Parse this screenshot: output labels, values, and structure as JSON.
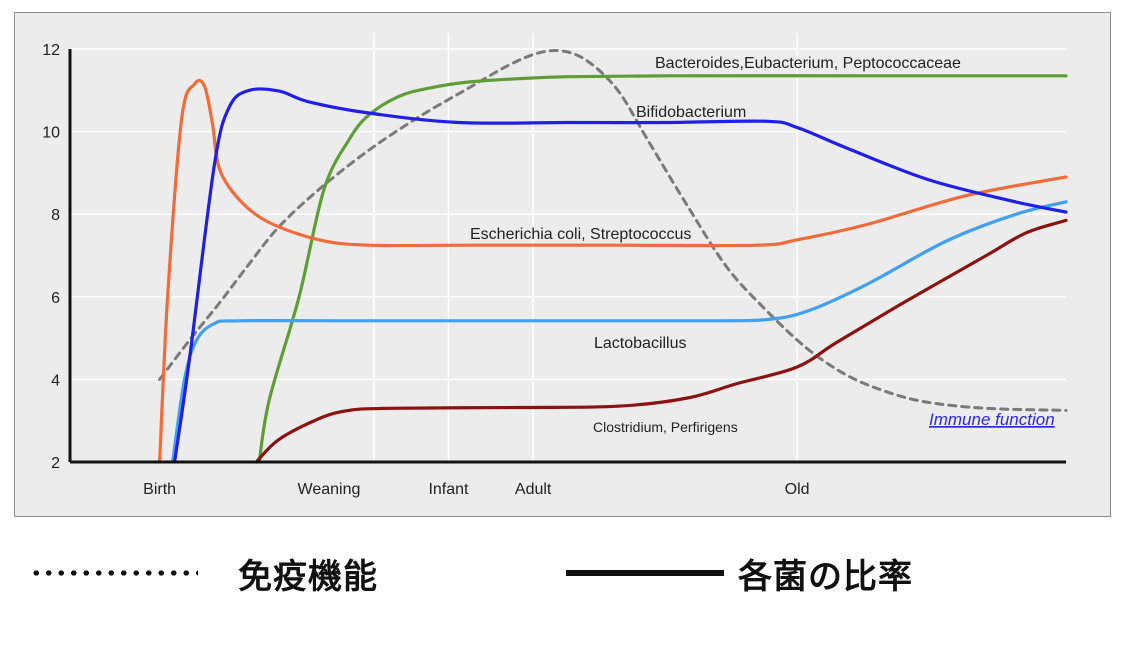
{
  "chart_data": {
    "type": "line",
    "title": "",
    "xlabel": "",
    "ylabel": "",
    "ylim": [
      2,
      12
    ],
    "yticks": [
      "2",
      "4",
      "6",
      "8",
      "10",
      "12"
    ],
    "x_range": [
      0,
      100
    ],
    "categories": [
      {
        "label": "Birth",
        "x": 9
      },
      {
        "label": "Weaning",
        "x": 26
      },
      {
        "label": "Infant",
        "x": 38
      },
      {
        "label": "Adult",
        "x": 46.5
      },
      {
        "label": "Old",
        "x": 73
      }
    ],
    "grid": true,
    "series": [
      {
        "name": "Bacteroides,Eubacterium, Peptococcaceae",
        "color": "#5e9e35",
        "style": "solid",
        "points": [
          [
            19,
            2
          ],
          [
            20,
            3.5
          ],
          [
            23,
            6
          ],
          [
            25.5,
            8.6
          ],
          [
            28,
            9.8
          ],
          [
            30,
            10.4
          ],
          [
            33,
            10.85
          ],
          [
            36,
            11.05
          ],
          [
            40,
            11.2
          ],
          [
            45,
            11.28
          ],
          [
            50,
            11.33
          ],
          [
            60,
            11.35
          ],
          [
            80,
            11.35
          ],
          [
            100,
            11.35
          ]
        ]
      },
      {
        "name": "Bifidobacterium",
        "color": "#1f1fe6",
        "style": "solid",
        "points": [
          [
            10.5,
            2
          ],
          [
            12,
            4.5
          ],
          [
            14.5,
            9.2
          ],
          [
            16,
            10.6
          ],
          [
            18,
            11.0
          ],
          [
            21,
            10.98
          ],
          [
            24,
            10.72
          ],
          [
            30,
            10.45
          ],
          [
            39,
            10.22
          ],
          [
            50,
            10.22
          ],
          [
            60,
            10.22
          ],
          [
            70,
            10.25
          ],
          [
            73,
            10.1
          ],
          [
            78,
            9.6
          ],
          [
            86,
            8.85
          ],
          [
            94,
            8.35
          ],
          [
            100,
            8.05
          ]
        ]
      },
      {
        "name": "Escherichia coli, Streptococcus",
        "color": "#f26b3a",
        "style": "solid",
        "points": [
          [
            9,
            2
          ],
          [
            9.8,
            6
          ],
          [
            11.2,
            10.3
          ],
          [
            12.5,
            11.15
          ],
          [
            13.5,
            11.1
          ],
          [
            14.3,
            10.2
          ],
          [
            15,
            9.1
          ],
          [
            17,
            8.35
          ],
          [
            20,
            7.8
          ],
          [
            25,
            7.38
          ],
          [
            30,
            7.25
          ],
          [
            40,
            7.25
          ],
          [
            55,
            7.25
          ],
          [
            69,
            7.25
          ],
          [
            73,
            7.38
          ],
          [
            80,
            7.75
          ],
          [
            90,
            8.45
          ],
          [
            100,
            8.9
          ]
        ]
      },
      {
        "name": "Lactobacillus",
        "color": "#41a0f0",
        "style": "solid",
        "points": [
          [
            10.3,
            2
          ],
          [
            11.5,
            4.0
          ],
          [
            12.7,
            4.95
          ],
          [
            14.5,
            5.35
          ],
          [
            17,
            5.42
          ],
          [
            30,
            5.42
          ],
          [
            50,
            5.42
          ],
          [
            65,
            5.42
          ],
          [
            70,
            5.45
          ],
          [
            74,
            5.65
          ],
          [
            80,
            6.3
          ],
          [
            88,
            7.35
          ],
          [
            95,
            8.0
          ],
          [
            100,
            8.3
          ]
        ]
      },
      {
        "name": "Clostridium, Perfirigens",
        "color": "#8b1210",
        "style": "solid",
        "points": [
          [
            18.7,
            2
          ],
          [
            21,
            2.55
          ],
          [
            25,
            3.05
          ],
          [
            28,
            3.25
          ],
          [
            32,
            3.3
          ],
          [
            45,
            3.32
          ],
          [
            55,
            3.35
          ],
          [
            62,
            3.55
          ],
          [
            67,
            3.9
          ],
          [
            73,
            4.3
          ],
          [
            77,
            4.9
          ],
          [
            84,
            5.9
          ],
          [
            92,
            7.0
          ],
          [
            96,
            7.55
          ],
          [
            100,
            7.85
          ]
        ]
      },
      {
        "name": "Immune function",
        "color": "#7a7a7a",
        "style": "dashed",
        "points": [
          [
            9,
            4.0
          ],
          [
            12,
            4.95
          ],
          [
            15,
            5.85
          ],
          [
            18,
            6.8
          ],
          [
            21,
            7.7
          ],
          [
            25,
            8.6
          ],
          [
            30,
            9.55
          ],
          [
            35,
            10.35
          ],
          [
            40,
            11.05
          ],
          [
            44,
            11.6
          ],
          [
            47,
            11.9
          ],
          [
            49.5,
            11.95
          ],
          [
            52,
            11.7
          ],
          [
            55,
            11.0
          ],
          [
            58,
            9.8
          ],
          [
            62,
            8.2
          ],
          [
            66,
            6.7
          ],
          [
            70,
            5.65
          ],
          [
            74,
            4.75
          ],
          [
            78,
            4.1
          ],
          [
            82,
            3.7
          ],
          [
            86,
            3.45
          ],
          [
            92,
            3.3
          ],
          [
            100,
            3.25
          ]
        ]
      }
    ],
    "series_labels": {
      "bacteroides": "Bacteroides,Eubacterium, Peptococcaceae",
      "bifido": "Bifidobacterium",
      "ecoli": "Escherichia coli, Streptococcus",
      "lacto": "Lactobacillus",
      "clostridium": "Clostridium, Perfirigens",
      "immune": "Immune function"
    }
  },
  "legend": {
    "dotted_label": "免疫機能",
    "solid_label": "各菌の比率"
  }
}
